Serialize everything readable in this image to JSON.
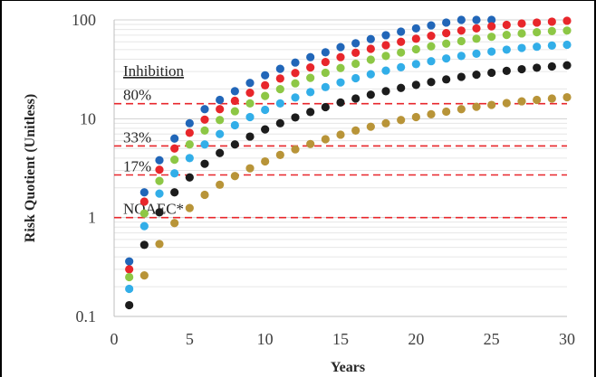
{
  "chart_data": {
    "type": "scatter",
    "xlabel": "Years",
    "ylabel": "Risk Quotient (Unitless)",
    "xlim": [
      0,
      30
    ],
    "ylim": [
      0.1,
      100
    ],
    "y_scale": "log",
    "grid": "horizontal minor log gridlines",
    "x_ticks": [
      "0",
      "5",
      "10",
      "15",
      "20",
      "25",
      "30"
    ],
    "y_ticks": [
      "0.1",
      "1",
      "10",
      "100"
    ],
    "y_tick_values": [
      0.1,
      1,
      10,
      100
    ],
    "x_tick_values": [
      0,
      5,
      10,
      15,
      20,
      25,
      30
    ],
    "x": [
      1,
      2,
      3,
      4,
      5,
      6,
      7,
      8,
      9,
      10,
      11,
      12,
      13,
      14,
      15,
      16,
      17,
      18,
      19,
      20,
      21,
      22,
      23,
      24,
      25,
      26,
      27,
      28,
      29,
      30
    ],
    "series": [
      {
        "color": "#2166b8",
        "values": [
          0.36,
          1.8,
          3.8,
          6.3,
          9.0,
          12.5,
          15.5,
          19.0,
          23.0,
          27.5,
          32.0,
          37.0,
          42.0,
          47.0,
          53.0,
          58.0,
          64.0,
          70.0,
          76.0,
          82.0,
          88.0,
          94.0,
          100.0,
          100.0,
          100.0,
          null,
          null,
          null,
          null,
          null
        ]
      },
      {
        "color": "#e8262b",
        "values": [
          0.3,
          1.45,
          3.05,
          5.0,
          7.2,
          9.8,
          12.5,
          15.2,
          18.3,
          21.8,
          25.5,
          29.0,
          33.0,
          37.5,
          42.0,
          46.5,
          51.0,
          55.5,
          60.0,
          64.5,
          69.0,
          73.5,
          78.0,
          82.0,
          86.0,
          89.0,
          92.0,
          94.0,
          96.0,
          98.0
        ]
      },
      {
        "color": "#8dc745",
        "values": [
          0.25,
          1.1,
          2.35,
          3.85,
          5.5,
          7.6,
          9.7,
          11.9,
          14.3,
          17.0,
          19.9,
          22.8,
          25.9,
          29.2,
          32.6,
          36.0,
          39.6,
          43.2,
          46.8,
          50.4,
          54.0,
          57.5,
          61.0,
          64.5,
          67.5,
          70.5,
          73.0,
          75.0,
          77.0,
          78.0
        ]
      },
      {
        "color": "#32aee8",
        "values": [
          0.19,
          0.82,
          1.75,
          2.8,
          4.0,
          5.5,
          7.0,
          8.6,
          10.4,
          12.3,
          14.3,
          16.4,
          18.6,
          20.9,
          23.3,
          25.7,
          28.2,
          30.7,
          33.2,
          35.7,
          38.2,
          40.7,
          43.2,
          45.5,
          47.8,
          50.0,
          52.0,
          53.5,
          55.0,
          56.0
        ]
      },
      {
        "color": "#1c1c1c",
        "values": [
          0.13,
          0.53,
          1.13,
          1.8,
          2.55,
          3.5,
          4.5,
          5.5,
          6.6,
          7.8,
          9.0,
          10.3,
          11.7,
          13.1,
          14.6,
          16.0,
          17.5,
          19.0,
          20.5,
          22.0,
          23.5,
          25.0,
          26.5,
          27.9,
          29.2,
          30.5,
          31.7,
          32.8,
          33.8,
          34.7
        ]
      },
      {
        "color": "#b89438",
        "values": [
          null,
          0.26,
          0.54,
          0.88,
          1.25,
          1.7,
          2.15,
          2.63,
          3.15,
          3.7,
          4.3,
          4.9,
          5.55,
          6.2,
          6.9,
          7.6,
          8.3,
          9.0,
          9.7,
          10.4,
          11.1,
          11.8,
          12.5,
          13.2,
          13.8,
          14.4,
          15.0,
          15.5,
          16.0,
          16.5
        ]
      }
    ],
    "thresholds": [
      {
        "label": "80%",
        "value": 14.2,
        "color": "#e8262b"
      },
      {
        "label": "33%",
        "value": 5.3,
        "color": "#e8262b"
      },
      {
        "label": "17%",
        "value": 2.7,
        "color": "#e8262b"
      },
      {
        "label": "NOAEC*",
        "value": 1.0,
        "color": "#e8262b"
      }
    ],
    "threshold_header": "Inhibition"
  }
}
